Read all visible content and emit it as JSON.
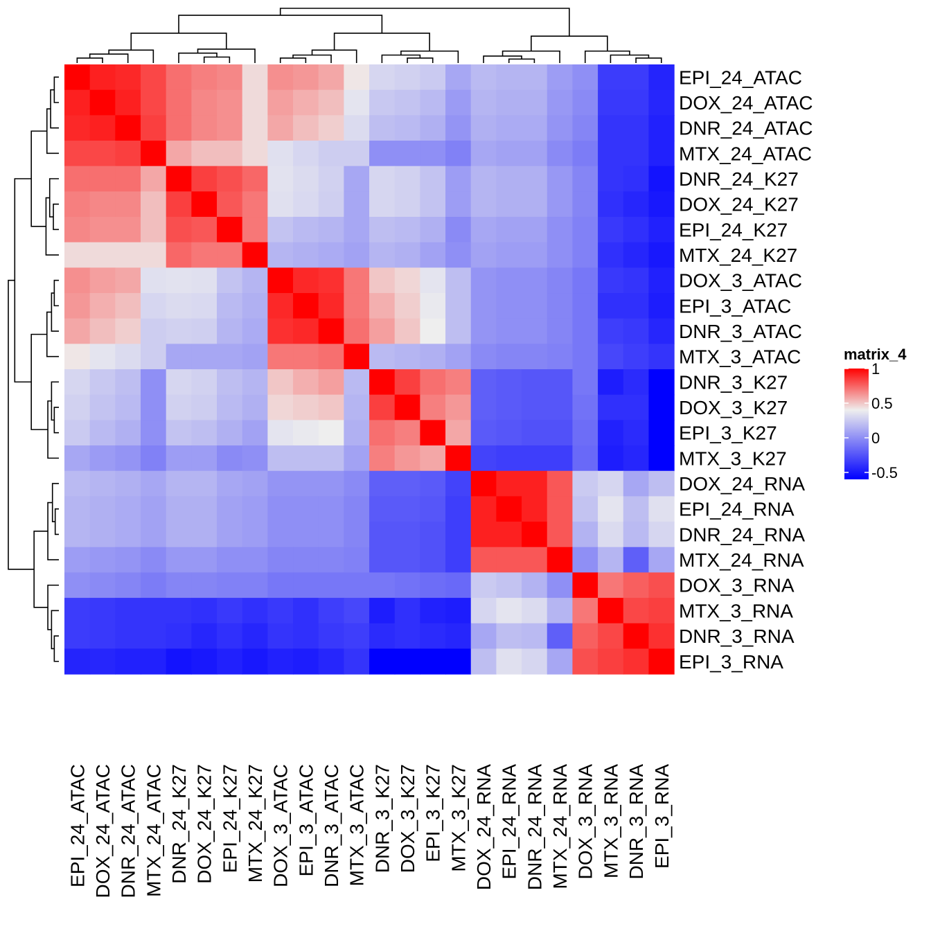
{
  "chart_data": {
    "type": "heatmap",
    "title": "",
    "row_labels": [
      "EPI_24_ATAC",
      "DOX_24_ATAC",
      "DNR_24_ATAC",
      "MTX_24_ATAC",
      "DNR_24_K27",
      "DOX_24_K27",
      "EPI_24_K27",
      "MTX_24_K27",
      "DOX_3_ATAC",
      "EPI_3_ATAC",
      "DNR_3_ATAC",
      "MTX_3_ATAC",
      "DNR_3_K27",
      "DOX_3_K27",
      "EPI_3_K27",
      "MTX_3_K27",
      "DOX_24_RNA",
      "EPI_24_RNA",
      "DNR_24_RNA",
      "MTX_24_RNA",
      "DOX_3_RNA",
      "MTX_3_RNA",
      "DNR_3_RNA",
      "EPI_3_RNA"
    ],
    "col_labels": [
      "EPI_24_ATAC",
      "DOX_24_ATAC",
      "DNR_24_ATAC",
      "MTX_24_ATAC",
      "DNR_24_K27",
      "DOX_24_K27",
      "EPI_24_K27",
      "MTX_24_K27",
      "DOX_3_ATAC",
      "EPI_3_ATAC",
      "DNR_3_ATAC",
      "MTX_3_ATAC",
      "DNR_3_K27",
      "DOX_3_K27",
      "EPI_3_K27",
      "MTX_3_K27",
      "DOX_24_RNA",
      "EPI_24_RNA",
      "DNR_24_RNA",
      "MTX_24_RNA",
      "DOX_3_RNA",
      "MTX_3_RNA",
      "DNR_3_RNA",
      "EPI_3_RNA"
    ],
    "values": [
      [
        1.0,
        0.92,
        0.9,
        0.82,
        0.72,
        0.68,
        0.66,
        0.45,
        0.64,
        0.62,
        0.58,
        0.42,
        0.3,
        0.28,
        0.25,
        0.1,
        0.18,
        0.16,
        0.16,
        0.06,
        0.0,
        -0.35,
        -0.35,
        -0.45
      ],
      [
        0.92,
        1.0,
        0.92,
        0.82,
        0.72,
        0.66,
        0.64,
        0.45,
        0.6,
        0.56,
        0.52,
        0.36,
        0.24,
        0.22,
        0.18,
        0.05,
        0.16,
        0.14,
        0.14,
        0.04,
        -0.02,
        -0.36,
        -0.36,
        -0.44
      ],
      [
        0.9,
        0.92,
        1.0,
        0.84,
        0.72,
        0.66,
        0.64,
        0.45,
        0.58,
        0.52,
        0.48,
        0.32,
        0.2,
        0.18,
        0.14,
        0.02,
        0.14,
        0.12,
        0.12,
        0.02,
        -0.04,
        -0.38,
        -0.38,
        -0.46
      ],
      [
        0.82,
        0.82,
        0.84,
        1.0,
        0.58,
        0.52,
        0.52,
        0.45,
        0.34,
        0.3,
        0.26,
        0.26,
        0.0,
        0.0,
        0.0,
        -0.06,
        0.1,
        0.08,
        0.08,
        -0.02,
        -0.08,
        -0.38,
        -0.38,
        -0.46
      ],
      [
        0.72,
        0.72,
        0.72,
        0.58,
        1.0,
        0.84,
        0.8,
        0.74,
        0.35,
        0.32,
        0.28,
        0.1,
        0.3,
        0.28,
        0.22,
        0.06,
        0.16,
        0.14,
        0.14,
        0.04,
        -0.04,
        -0.38,
        -0.4,
        -0.52
      ],
      [
        0.68,
        0.66,
        0.66,
        0.52,
        0.84,
        1.0,
        0.78,
        0.7,
        0.34,
        0.31,
        0.27,
        0.1,
        0.3,
        0.28,
        0.22,
        0.06,
        0.16,
        0.14,
        0.14,
        0.04,
        -0.04,
        -0.4,
        -0.44,
        -0.5
      ],
      [
        0.66,
        0.64,
        0.64,
        0.52,
        0.8,
        0.78,
        1.0,
        0.7,
        0.22,
        0.18,
        0.16,
        0.1,
        0.2,
        0.18,
        0.14,
        -0.02,
        0.1,
        0.08,
        0.08,
        0.0,
        -0.06,
        -0.36,
        -0.4,
        -0.46
      ],
      [
        0.45,
        0.45,
        0.45,
        0.45,
        0.74,
        0.7,
        0.7,
        1.0,
        0.16,
        0.14,
        0.12,
        0.08,
        0.16,
        0.14,
        0.08,
        0.0,
        0.08,
        0.06,
        0.06,
        0.0,
        -0.06,
        -0.4,
        -0.44,
        -0.5
      ],
      [
        0.64,
        0.6,
        0.58,
        0.34,
        0.35,
        0.34,
        0.22,
        0.16,
        1.0,
        0.9,
        0.88,
        0.7,
        0.5,
        0.46,
        0.36,
        0.2,
        0.02,
        0.0,
        0.0,
        -0.04,
        -0.1,
        -0.36,
        -0.38,
        -0.46
      ],
      [
        0.62,
        0.56,
        0.52,
        0.3,
        0.32,
        0.31,
        0.18,
        0.14,
        0.9,
        1.0,
        0.9,
        0.7,
        0.56,
        0.48,
        0.38,
        0.2,
        0.02,
        0.0,
        0.0,
        -0.04,
        -0.1,
        -0.4,
        -0.4,
        -0.48
      ],
      [
        0.58,
        0.52,
        0.48,
        0.26,
        0.28,
        0.27,
        0.16,
        0.12,
        0.88,
        0.9,
        1.0,
        0.72,
        0.6,
        0.5,
        0.4,
        0.2,
        0.02,
        0.0,
        0.0,
        -0.04,
        -0.1,
        -0.34,
        -0.36,
        -0.44
      ],
      [
        0.42,
        0.36,
        0.32,
        0.26,
        0.1,
        0.1,
        0.1,
        0.08,
        0.7,
        0.7,
        0.72,
        1.0,
        0.18,
        0.16,
        0.14,
        0.08,
        -0.02,
        -0.04,
        -0.04,
        -0.06,
        -0.1,
        -0.3,
        -0.34,
        -0.38
      ],
      [
        0.3,
        0.24,
        0.2,
        0.0,
        0.3,
        0.28,
        0.2,
        0.16,
        0.5,
        0.56,
        0.6,
        0.18,
        1.0,
        0.84,
        0.72,
        0.68,
        -0.2,
        -0.22,
        -0.24,
        -0.24,
        -0.1,
        -0.48,
        -0.42,
        -0.62
      ],
      [
        0.28,
        0.22,
        0.18,
        0.0,
        0.28,
        0.26,
        0.18,
        0.14,
        0.46,
        0.48,
        0.5,
        0.16,
        0.84,
        1.0,
        0.68,
        0.62,
        -0.2,
        -0.22,
        -0.24,
        -0.24,
        -0.12,
        -0.4,
        -0.4,
        -0.62
      ],
      [
        0.25,
        0.18,
        0.14,
        0.0,
        0.22,
        0.2,
        0.14,
        0.08,
        0.36,
        0.38,
        0.4,
        0.14,
        0.72,
        0.68,
        1.0,
        0.58,
        -0.22,
        -0.24,
        -0.26,
        -0.26,
        -0.14,
        -0.46,
        -0.42,
        -0.62
      ],
      [
        0.1,
        0.05,
        0.02,
        -0.06,
        0.06,
        0.06,
        -0.02,
        0.0,
        0.2,
        0.2,
        0.2,
        0.08,
        0.68,
        0.62,
        0.58,
        1.0,
        -0.32,
        -0.34,
        -0.34,
        -0.34,
        -0.16,
        -0.48,
        -0.44,
        -0.62
      ],
      [
        0.18,
        0.16,
        0.14,
        0.1,
        0.16,
        0.16,
        0.1,
        0.08,
        0.02,
        0.02,
        0.02,
        -0.02,
        -0.2,
        -0.2,
        -0.22,
        -0.32,
        1.0,
        0.92,
        0.92,
        0.78,
        0.25,
        0.3,
        0.1,
        0.2
      ],
      [
        0.16,
        0.14,
        0.12,
        0.08,
        0.14,
        0.14,
        0.08,
        0.06,
        0.0,
        0.0,
        0.0,
        -0.04,
        -0.22,
        -0.22,
        -0.24,
        -0.34,
        0.92,
        1.0,
        0.92,
        0.78,
        0.22,
        0.36,
        0.2,
        0.34
      ],
      [
        0.16,
        0.14,
        0.12,
        0.08,
        0.14,
        0.14,
        0.08,
        0.06,
        0.0,
        0.0,
        0.0,
        -0.04,
        -0.24,
        -0.24,
        -0.26,
        -0.34,
        0.92,
        0.92,
        1.0,
        0.78,
        0.15,
        0.32,
        0.18,
        0.3
      ],
      [
        0.06,
        0.04,
        0.02,
        -0.02,
        0.04,
        0.04,
        0.0,
        0.0,
        -0.04,
        -0.04,
        -0.04,
        -0.06,
        -0.24,
        -0.24,
        -0.26,
        -0.34,
        0.78,
        0.78,
        0.78,
        1.0,
        0.0,
        0.16,
        -0.2,
        0.1
      ],
      [
        0.0,
        -0.02,
        -0.04,
        -0.08,
        -0.04,
        -0.04,
        -0.06,
        -0.06,
        -0.1,
        -0.1,
        -0.1,
        -0.1,
        -0.1,
        -0.12,
        -0.14,
        -0.16,
        0.25,
        0.22,
        0.15,
        0.0,
        1.0,
        0.7,
        0.76,
        0.8
      ],
      [
        -0.35,
        -0.36,
        -0.38,
        -0.38,
        -0.38,
        -0.4,
        -0.36,
        -0.4,
        -0.36,
        -0.4,
        -0.34,
        -0.3,
        -0.48,
        -0.4,
        -0.46,
        -0.48,
        0.3,
        0.36,
        0.32,
        0.16,
        0.7,
        1.0,
        0.82,
        0.84
      ],
      [
        -0.35,
        -0.36,
        -0.38,
        -0.38,
        -0.4,
        -0.44,
        -0.4,
        -0.44,
        -0.38,
        -0.4,
        -0.36,
        -0.34,
        -0.42,
        -0.4,
        -0.42,
        -0.44,
        0.1,
        0.2,
        0.18,
        -0.2,
        0.76,
        0.82,
        1.0,
        0.88
      ],
      [
        -0.45,
        -0.44,
        -0.46,
        -0.46,
        -0.52,
        -0.5,
        -0.46,
        -0.5,
        -0.46,
        -0.48,
        -0.44,
        -0.38,
        -0.62,
        -0.62,
        -0.62,
        -0.62,
        0.2,
        0.34,
        0.3,
        0.1,
        0.8,
        0.84,
        0.88,
        1.0
      ]
    ],
    "color_scale": {
      "min": -0.6,
      "mid": 0.4,
      "max": 1.0,
      "low_color": "#0000ff",
      "mid_color": "#eeeeee",
      "high_color": "#ff0000"
    },
    "legend": {
      "title": "matrix_4",
      "ticks": [
        1,
        0.5,
        0,
        -0.5
      ],
      "tick_labels": [
        "1",
        "0.5",
        "0",
        "-0.5"
      ],
      "placement": "right"
    },
    "dendrogram": {
      "placement": [
        "top",
        "left"
      ],
      "nodes": [
        {
          "a": 0,
          "b": 1,
          "h": 0.05
        },
        {
          "a": "n0",
          "b": 2,
          "h": 0.09
        },
        {
          "a": "n1",
          "b": 3,
          "h": 0.13
        },
        {
          "a": 5,
          "b": 6,
          "h": 0.06
        },
        {
          "a": 4,
          "b": "n3",
          "h": 0.1
        },
        {
          "a": "n4",
          "b": 7,
          "h": 0.14
        },
        {
          "a": "n2",
          "b": "n5",
          "h": 0.3
        },
        {
          "a": 8,
          "b": 9,
          "h": 0.05
        },
        {
          "a": "n7",
          "b": 10,
          "h": 0.08
        },
        {
          "a": "n8",
          "b": 11,
          "h": 0.13
        },
        {
          "a": 13,
          "b": 14,
          "h": 0.05
        },
        {
          "a": 12,
          "b": "n10",
          "h": 0.08
        },
        {
          "a": "n11",
          "b": 15,
          "h": 0.12
        },
        {
          "a": "n9",
          "b": "n12",
          "h": 0.3
        },
        {
          "a": "n6",
          "b": "n13",
          "h": 0.48
        },
        {
          "a": 17,
          "b": 18,
          "h": 0.04
        },
        {
          "a": 16,
          "b": "n15",
          "h": 0.07
        },
        {
          "a": "n16",
          "b": 19,
          "h": 0.12
        },
        {
          "a": 22,
          "b": 23,
          "h": 0.05
        },
        {
          "a": 21,
          "b": "n18",
          "h": 0.08
        },
        {
          "a": 20,
          "b": "n19",
          "h": 0.12
        },
        {
          "a": "n17",
          "b": "n20",
          "h": 0.27
        },
        {
          "a": "n14",
          "b": "n21",
          "h": 0.55
        }
      ]
    }
  }
}
